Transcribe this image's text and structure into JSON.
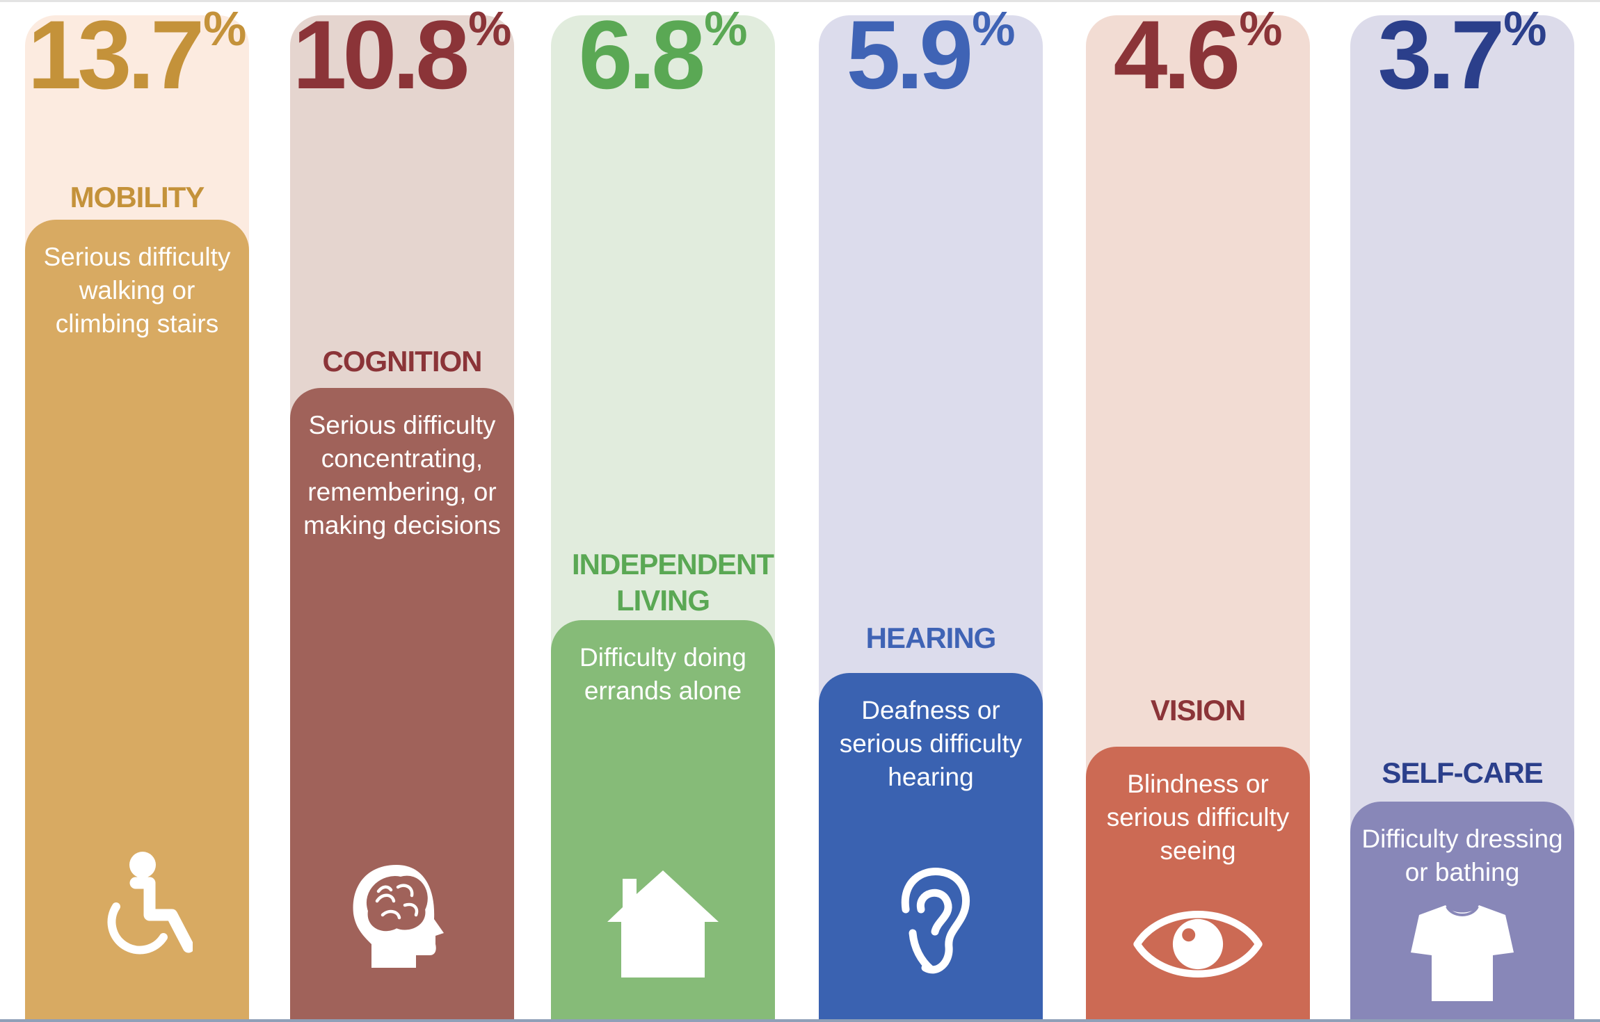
{
  "chart_data": {
    "type": "bar",
    "unit": "%",
    "categories": [
      "MOBILITY",
      "COGNITION",
      "INDEPENDENT LIVING",
      "HEARING",
      "VISION",
      "SELF-CARE"
    ],
    "values": [
      13.7,
      10.8,
      6.8,
      5.9,
      4.6,
      3.7
    ],
    "bars": [
      {
        "value_label": "13.7",
        "category": "MOBILITY",
        "description": "Serious difficulty walking or climbing stairs",
        "icon": "wheelchair-icon",
        "colors": {
          "dark": "#c4923a",
          "fill": "#d8aa62",
          "light": "#fcebe0"
        }
      },
      {
        "value_label": "10.8",
        "category": "COGNITION",
        "description": "Serious difficulty concentrating, remembering, or making decisions",
        "icon": "brain-head-icon",
        "colors": {
          "dark": "#8b3438",
          "fill": "#a0625a",
          "light": "#e5d5cf"
        }
      },
      {
        "value_label": "6.8",
        "category": "INDEPENDENT LIVING",
        "description": "Difficulty doing errands alone",
        "icon": "house-icon",
        "colors": {
          "dark": "#5aa854",
          "fill": "#86bb78",
          "light": "#e1ecdd"
        }
      },
      {
        "value_label": "5.9",
        "category": "HEARING",
        "description": "Deafness or serious difficulty hearing",
        "icon": "ear-icon",
        "colors": {
          "dark": "#3f63b5",
          "fill": "#3a62b1",
          "light": "#dcdcec"
        }
      },
      {
        "value_label": "4.6",
        "category": "VISION",
        "description": "Blindness or serious difficulty seeing",
        "icon": "eye-icon",
        "colors": {
          "dark": "#8b3438",
          "fill": "#cc6a54",
          "light": "#f2dcd3"
        }
      },
      {
        "value_label": "3.7",
        "category": "SELF-CARE",
        "description": "Difficulty dressing or bathing",
        "icon": "tshirt-icon",
        "colors": {
          "dark": "#2b3f8b",
          "fill": "#8887b8",
          "light": "#dcdbea"
        }
      }
    ]
  }
}
